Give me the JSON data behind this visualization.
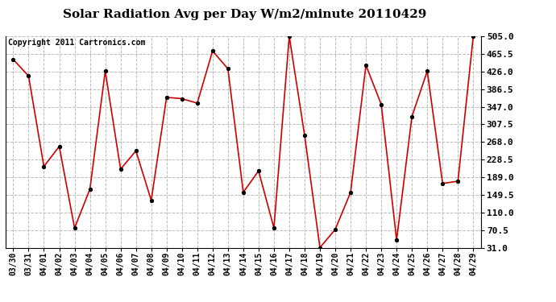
{
  "title": "Solar Radiation Avg per Day W/m2/minute 20110429",
  "copyright": "Copyright 2011 Cartronics.com",
  "dates": [
    "03/30",
    "03/31",
    "04/01",
    "04/02",
    "04/03",
    "04/04",
    "04/05",
    "04/06",
    "04/07",
    "04/08",
    "04/09",
    "04/10",
    "04/11",
    "04/12",
    "04/13",
    "04/14",
    "04/15",
    "04/16",
    "04/17",
    "04/18",
    "04/19",
    "04/20",
    "04/21",
    "04/22",
    "04/23",
    "04/24",
    "04/25",
    "04/26",
    "04/27",
    "04/28",
    "04/29"
  ],
  "values": [
    453,
    416,
    213,
    258,
    75,
    162,
    427,
    207,
    248,
    137,
    368,
    365,
    355,
    472,
    432,
    155,
    203,
    75,
    505,
    283,
    31,
    72,
    155,
    440,
    352,
    48,
    325,
    427,
    175,
    180,
    505
  ],
  "line_color": "#cc0000",
  "marker_color": "#000000",
  "bg_color": "#ffffff",
  "plot_bg_color": "#ffffff",
  "grid_color": "#bbbbbb",
  "yticks": [
    31.0,
    70.5,
    110.0,
    149.5,
    189.0,
    228.5,
    268.0,
    307.5,
    347.0,
    386.5,
    426.0,
    465.5,
    505.0
  ],
  "ylim": [
    31.0,
    505.0
  ],
  "title_fontsize": 11,
  "copyright_fontsize": 7,
  "tick_fontsize": 7,
  "ytick_fontsize": 8
}
